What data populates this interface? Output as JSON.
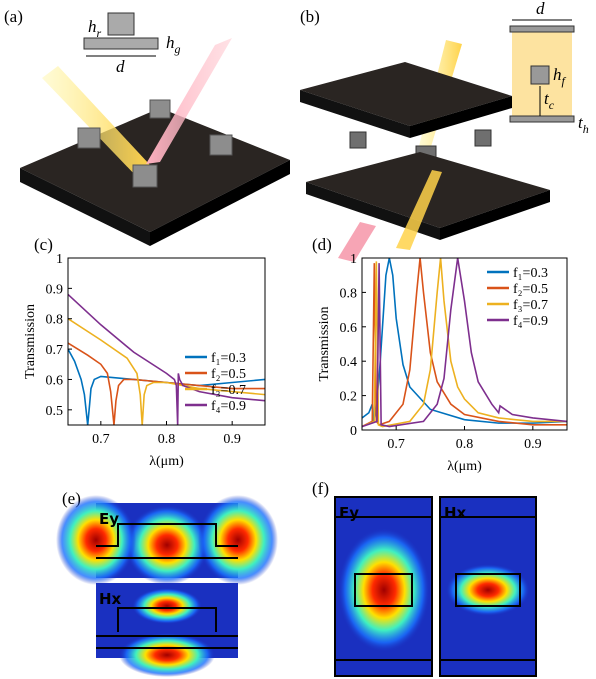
{
  "panels": {
    "a": "(a)",
    "b": "(b)",
    "c": "(c)",
    "d": "(d)",
    "e": "(e)",
    "f": "(f)"
  },
  "schematic_a": {
    "hr": {
      "base": "h",
      "sub": "r"
    },
    "hg": {
      "base": "h",
      "sub": "g"
    },
    "d": "d"
  },
  "schematic_b": {
    "d": "d",
    "hf": {
      "base": "h",
      "sub": "f"
    },
    "tc": {
      "base": "t",
      "sub": "c"
    },
    "th": {
      "base": "t",
      "sub": "h"
    }
  },
  "field_maps": {
    "e_top": "Ey",
    "e_bottom": "Hx",
    "f_left": "Ey",
    "f_right": "Hx"
  },
  "chart_data": [
    {
      "type": "line",
      "ylabel": "Transmission",
      "xlabel": "λ(μm)",
      "xlim": [
        0.65,
        0.95
      ],
      "xticks": [
        0.7,
        0.8,
        0.9
      ],
      "ylim": [
        0.45,
        1
      ],
      "yticks": [
        0.5,
        0.6,
        0.7,
        0.8,
        0.9,
        1
      ],
      "legend": "lower right",
      "series": [
        {
          "name": "f₁=0.3",
          "color": "#0072bd",
          "x": [
            0.65,
            0.66,
            0.67,
            0.675,
            0.68,
            0.683,
            0.685,
            0.69,
            0.7,
            0.75,
            0.8,
            0.85,
            0.9,
            0.95
          ],
          "values": [
            0.7,
            0.66,
            0.6,
            0.55,
            0.45,
            0.52,
            0.57,
            0.6,
            0.61,
            0.6,
            0.59,
            0.58,
            0.59,
            0.6
          ]
        },
        {
          "name": "f₂=0.5",
          "color": "#d95319",
          "x": [
            0.65,
            0.68,
            0.7,
            0.71,
            0.715,
            0.72,
            0.723,
            0.727,
            0.735,
            0.75,
            0.8,
            0.85,
            0.9,
            0.95
          ],
          "values": [
            0.72,
            0.68,
            0.65,
            0.62,
            0.56,
            0.45,
            0.53,
            0.58,
            0.6,
            0.6,
            0.59,
            0.58,
            0.57,
            0.57
          ]
        },
        {
          "name": "f₃=0.7",
          "color": "#edb120",
          "x": [
            0.65,
            0.7,
            0.74,
            0.755,
            0.76,
            0.763,
            0.766,
            0.77,
            0.78,
            0.8,
            0.85,
            0.9,
            0.95
          ],
          "values": [
            0.8,
            0.73,
            0.67,
            0.62,
            0.55,
            0.45,
            0.55,
            0.58,
            0.59,
            0.59,
            0.57,
            0.56,
            0.55
          ]
        },
        {
          "name": "f₄=0.9",
          "color": "#7e2f8e",
          "x": [
            0.65,
            0.7,
            0.75,
            0.8,
            0.812,
            0.815,
            0.817,
            0.818,
            0.82,
            0.825,
            0.85,
            0.9,
            0.95
          ],
          "values": [
            0.88,
            0.78,
            0.69,
            0.62,
            0.6,
            0.58,
            0.45,
            0.62,
            0.6,
            0.58,
            0.56,
            0.54,
            0.53
          ]
        }
      ]
    },
    {
      "type": "line",
      "ylabel": "Transmission",
      "xlabel": "λ(μm)",
      "xlim": [
        0.65,
        0.95
      ],
      "xticks": [
        0.7,
        0.8,
        0.9
      ],
      "ylim": [
        0,
        1
      ],
      "yticks": [
        0,
        0.2,
        0.4,
        0.6,
        0.8,
        1
      ],
      "legend": "upper right",
      "series": [
        {
          "name": "f₁=0.3",
          "color": "#0072bd",
          "x": [
            0.65,
            0.66,
            0.665,
            0.667,
            0.67,
            0.675,
            0.68,
            0.685,
            0.69,
            0.695,
            0.7,
            0.71,
            0.72,
            0.75,
            0.8,
            0.85,
            0.9,
            0.95
          ],
          "values": [
            0.07,
            0.1,
            0.15,
            0.05,
            0.12,
            0.3,
            0.6,
            0.9,
            1,
            0.9,
            0.65,
            0.38,
            0.25,
            0.12,
            0.06,
            0.04,
            0.04,
            0.05
          ]
        },
        {
          "name": "f₂=0.5",
          "color": "#d95319",
          "x": [
            0.65,
            0.665,
            0.668,
            0.671,
            0.675,
            0.69,
            0.71,
            0.72,
            0.73,
            0.735,
            0.74,
            0.75,
            0.76,
            0.78,
            0.8,
            0.85,
            0.9,
            0.95
          ],
          "values": [
            0.02,
            0.05,
            0.97,
            0.05,
            0.03,
            0.05,
            0.15,
            0.35,
            0.8,
            1,
            0.8,
            0.45,
            0.28,
            0.15,
            0.09,
            0.05,
            0.03,
            0.03
          ]
        },
        {
          "name": "f₃=0.7",
          "color": "#edb120",
          "x": [
            0.65,
            0.668,
            0.671,
            0.674,
            0.68,
            0.72,
            0.74,
            0.75,
            0.76,
            0.765,
            0.77,
            0.78,
            0.79,
            0.8,
            0.82,
            0.85,
            0.9,
            0.95
          ],
          "values": [
            0.02,
            0.05,
            0.98,
            0.03,
            0.02,
            0.05,
            0.15,
            0.35,
            0.8,
            1,
            0.75,
            0.4,
            0.25,
            0.18,
            0.1,
            0.07,
            0.05,
            0.05
          ]
        },
        {
          "name": "f₄=0.9",
          "color": "#7e2f8e",
          "x": [
            0.65,
            0.672,
            0.675,
            0.678,
            0.69,
            0.74,
            0.76,
            0.77,
            0.78,
            0.79,
            0.8,
            0.81,
            0.82,
            0.84,
            0.85,
            0.852,
            0.87,
            0.9,
            0.95
          ],
          "values": [
            0.02,
            0.05,
            0.97,
            0.03,
            0.02,
            0.05,
            0.15,
            0.3,
            0.7,
            1,
            0.75,
            0.45,
            0.28,
            0.15,
            0.1,
            0.14,
            0.09,
            0.07,
            0.05
          ]
        }
      ]
    }
  ]
}
